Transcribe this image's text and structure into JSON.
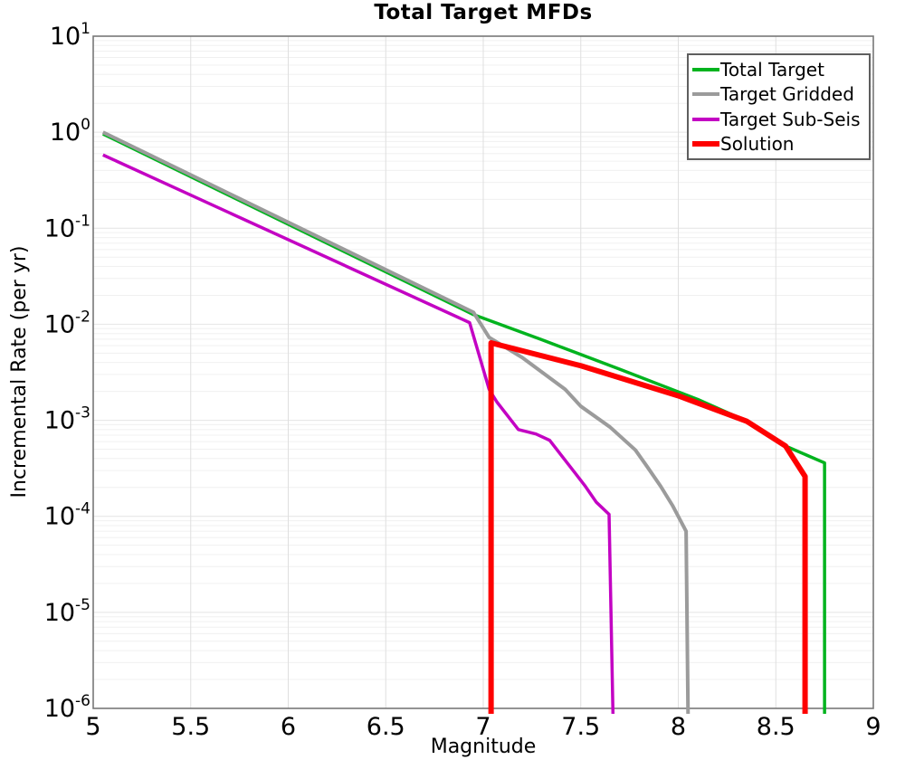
{
  "title": "Total Target MFDs",
  "x_axis": {
    "label": "Magnitude",
    "ticks": [
      5,
      5.5,
      6,
      6.5,
      7,
      7.5,
      8,
      8.5,
      9
    ],
    "tick_labels": [
      "5",
      "5.5",
      "6",
      "6.5",
      "7",
      "7.5",
      "8",
      "8.5",
      "9"
    ]
  },
  "y_axis": {
    "label": "Incremental Rate (per yr)",
    "tick_exponents": [
      1,
      0,
      -1,
      -2,
      -3,
      -4,
      -5,
      -6
    ]
  },
  "legend": {
    "position": "top-right",
    "items": [
      "Total Target",
      "Target Gridded",
      "Target Sub-Seis",
      "Solution"
    ]
  },
  "colors": {
    "grid_vertical": "#dfdfdf",
    "grid_major": "#e4e4e4",
    "grid_minor": "#f0f0f0",
    "plot_border": "#787878",
    "text": "#000000"
  },
  "chart_data": {
    "type": "line",
    "title": "Total Target MFDs",
    "xlabel": "Magnitude",
    "ylabel": "Incremental Rate (per yr)",
    "x_range": [
      5,
      9
    ],
    "y_range": [
      1e-06,
      10
    ],
    "y_scale": "log",
    "grid": true,
    "legend_position": "top-right",
    "series": [
      {
        "name": "Total Target",
        "color": "#00b31e",
        "width": 3.5,
        "points": [
          [
            5.05,
            0.96
          ],
          [
            6.95,
            0.0126
          ],
          [
            7.3,
            0.0069
          ],
          [
            7.7,
            0.0034
          ],
          [
            8.1,
            0.00165
          ],
          [
            8.35,
            0.00098
          ],
          [
            8.55,
            0.00054
          ],
          [
            8.75,
            0.00036
          ],
          [
            8.75,
            1e-06
          ]
        ]
      },
      {
        "name": "Target Gridded",
        "color": "#9b9b9b",
        "width": 4,
        "points": [
          [
            5.05,
            1.0
          ],
          [
            6.95,
            0.0133
          ],
          [
            7.03,
            0.0073
          ],
          [
            7.2,
            0.0045
          ],
          [
            7.42,
            0.0021
          ],
          [
            7.5,
            0.0014
          ],
          [
            7.65,
            0.00085
          ],
          [
            7.78,
            0.00049
          ],
          [
            7.84,
            0.00033
          ],
          [
            7.91,
            0.000205
          ],
          [
            7.97,
            0.00013
          ],
          [
            8.04,
            7e-05
          ],
          [
            8.05,
            1e-06
          ]
        ]
      },
      {
        "name": "Target Sub-Seis",
        "color": "#c303c3",
        "width": 3.5,
        "points": [
          [
            5.05,
            0.58
          ],
          [
            6.93,
            0.0104
          ],
          [
            7.03,
            0.0021
          ],
          [
            7.07,
            0.00155
          ],
          [
            7.18,
            0.0008
          ],
          [
            7.27,
            0.00072
          ],
          [
            7.34,
            0.00062
          ],
          [
            7.45,
            0.00032
          ],
          [
            7.52,
            0.00021
          ],
          [
            7.58,
            0.00014
          ],
          [
            7.645,
            0.000105
          ],
          [
            7.665,
            1e-06
          ]
        ]
      },
      {
        "name": "Solution",
        "color": "#fe0000",
        "width": 6,
        "points": [
          [
            7.04,
            1e-06
          ],
          [
            7.04,
            0.0064
          ],
          [
            7.5,
            0.0037
          ],
          [
            8.0,
            0.0018
          ],
          [
            8.35,
            0.00098
          ],
          [
            8.55,
            0.00054
          ],
          [
            8.65,
            0.00026
          ],
          [
            8.65,
            1e-06
          ]
        ]
      }
    ]
  }
}
